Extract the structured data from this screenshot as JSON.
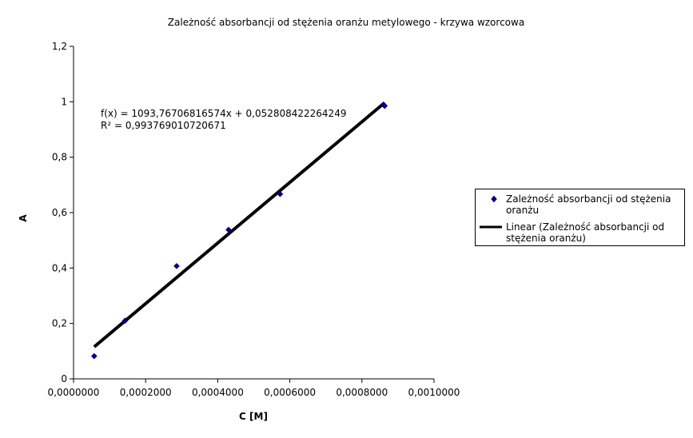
{
  "chart_data": {
    "type": "scatter",
    "title": "Zależność absorbancji od stężenia oranżu metylowego - krzywa wzorcowa",
    "xlabel": "C [M]",
    "ylabel": "A",
    "xlim": [
      0,
      0.001
    ],
    "ylim": [
      0,
      1.2
    ],
    "x_ticks": [
      0,
      0.0002,
      0.0004,
      0.0006,
      0.0008,
      0.001
    ],
    "x_tick_labels": [
      "0,0000000",
      "0,0002000",
      "0,0004000",
      "0,0006000",
      "0,0008000",
      "0,0010000"
    ],
    "y_ticks": [
      0,
      0.2,
      0.4,
      0.6,
      0.8,
      1.0,
      1.2
    ],
    "y_tick_labels": [
      "0",
      "0,2",
      "0,4",
      "0,6",
      "0,8",
      "1",
      "1,2"
    ],
    "grid": false,
    "legend_position": "right",
    "series": [
      {
        "name": "Zależność absorbancji od stężenia oranżu",
        "marker": "diamond",
        "color": "#000080",
        "x": [
          5.73e-05,
          0.000143,
          0.000286,
          0.00043,
          0.000573,
          0.00086,
          0.000863
        ],
        "y": [
          0.082,
          0.21,
          0.407,
          0.538,
          0.667,
          0.99,
          0.985
        ]
      }
    ],
    "trendline": {
      "name": "Linear (Zależność absorbancji od stężenia oranżu)",
      "type": "linear",
      "color": "#000000",
      "slope": 1093.76706816574,
      "intercept": 0.052808422264249,
      "x_range": [
        5.73e-05,
        0.00086
      ],
      "equation": "f(x) = 1093,76706816574x + 0,052808422264249",
      "r_squared": "R² = 0,993769010720671"
    }
  }
}
